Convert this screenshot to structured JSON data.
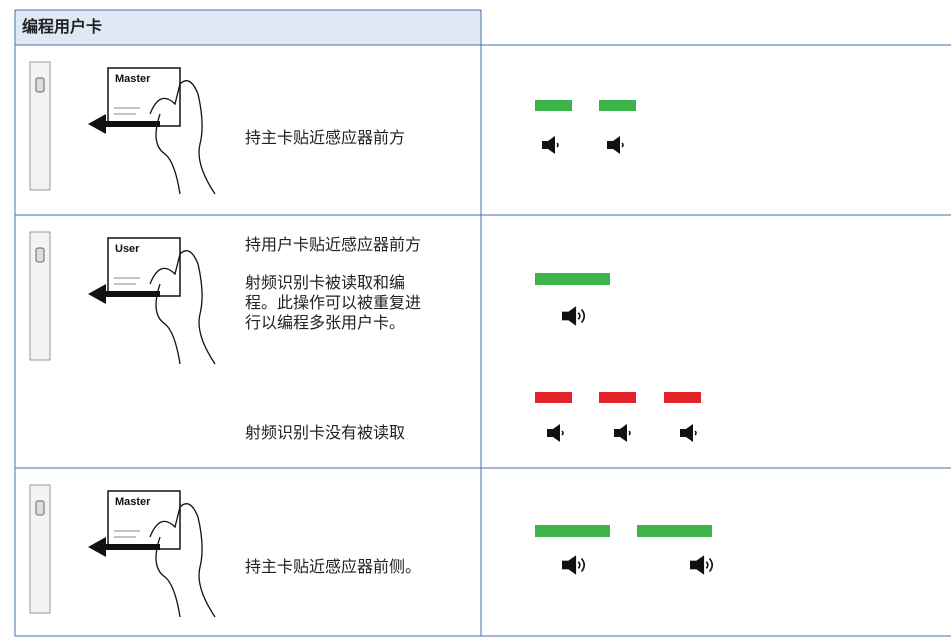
{
  "header": {
    "title": "编程用户卡"
  },
  "rows": [
    {
      "card_label": "Master",
      "texts": [
        "持主卡贴近感应器前方"
      ]
    },
    {
      "card_label": "User",
      "texts": [
        "持用户卡贴近感应器前方",
        "射频识别卡被读取和编",
        "程。此操作可以被重复进",
        "行以编程多张用户卡。",
        "射频识别卡没有被读取"
      ]
    },
    {
      "card_label": "Master",
      "texts": [
        "持主卡贴近感应器前侧。"
      ]
    }
  ]
}
